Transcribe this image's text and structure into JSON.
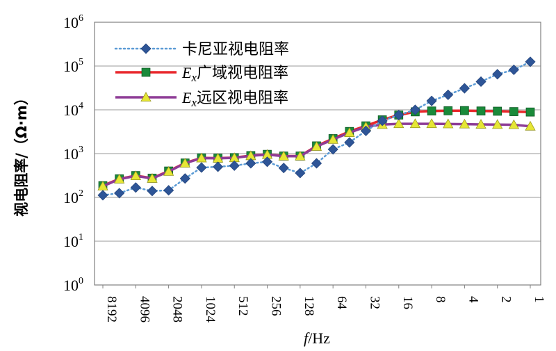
{
  "chart_data": {
    "type": "line",
    "xlabel": "f/Hz",
    "ylabel": "视电阻率/（Ω·m）",
    "yscale": "log",
    "ylim": [
      1,
      1000000
    ],
    "y_ticks": [
      {
        "base": "10",
        "exp": "0"
      },
      {
        "base": "10",
        "exp": "1"
      },
      {
        "base": "10",
        "exp": "2"
      },
      {
        "base": "10",
        "exp": "3"
      },
      {
        "base": "10",
        "exp": "4"
      },
      {
        "base": "10",
        "exp": "5"
      },
      {
        "base": "10",
        "exp": "6"
      }
    ],
    "x_tick_labels": [
      "8192",
      "4096",
      "2048",
      "1024",
      "512",
      "256",
      "128",
      "64",
      "32",
      "16",
      "8",
      "4",
      "2",
      "1"
    ],
    "x": [
      8192,
      5793,
      4096,
      2896,
      2048,
      1448,
      1024,
      724,
      512,
      362,
      256,
      181,
      128,
      91,
      64,
      45,
      32,
      23,
      16,
      11,
      8,
      5.7,
      4,
      2.8,
      2,
      1.4,
      1
    ],
    "grid": true,
    "legend_position": "top-left",
    "series": [
      {
        "name": "卡尼亚视电阻率",
        "name_parts": {
          "sym": "",
          "sub": "",
          "text": "卡尼亚视电阻率"
        },
        "color": "#5B9BD5",
        "marker": "diamond",
        "marker_color": "#2E5597",
        "line_style": "dotted",
        "values": [
          112,
          125,
          168,
          140,
          145,
          270,
          480,
          500,
          530,
          600,
          650,
          470,
          360,
          600,
          1250,
          1800,
          3300,
          5600,
          7600,
          10000,
          16000,
          22000,
          31000,
          44000,
          65000,
          82000,
          125000
        ]
      },
      {
        "name": "Ex广域视电阻率",
        "name_parts": {
          "sym": "E",
          "sub": "x",
          "text": "广域视电阻率"
        },
        "color": "#E8272B",
        "marker": "square",
        "marker_color": "#1A8A3A",
        "line_style": "solid",
        "values": [
          185,
          265,
          315,
          275,
          400,
          610,
          800,
          790,
          810,
          900,
          960,
          880,
          880,
          1500,
          2200,
          3200,
          4300,
          5900,
          7600,
          9000,
          9400,
          9500,
          9600,
          9400,
          9300,
          9100,
          8900
        ]
      },
      {
        "name": "Ex远区视电阻率",
        "name_parts": {
          "sym": "E",
          "sub": "x",
          "text": "远区视电阻率"
        },
        "color": "#8E3C96",
        "marker": "triangle",
        "marker_color": "#E6E635",
        "line_style": "solid",
        "values": [
          180,
          260,
          310,
          270,
          390,
          600,
          790,
          780,
          800,
          890,
          950,
          870,
          870,
          1450,
          2100,
          3000,
          4100,
          4600,
          4800,
          4800,
          4800,
          4750,
          4700,
          4650,
          4600,
          4550,
          4200
        ]
      }
    ]
  }
}
